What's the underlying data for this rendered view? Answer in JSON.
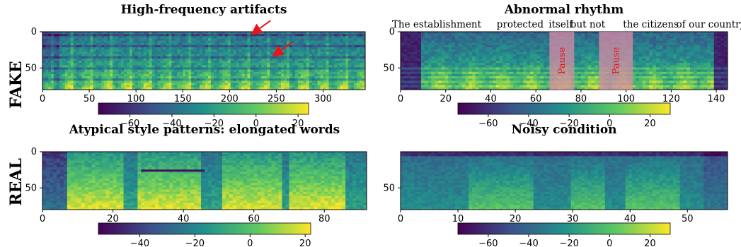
{
  "row_labels": [
    "FAKE",
    "REAL"
  ],
  "colormap": [
    "#440154",
    "#3b528b",
    "#21918c",
    "#5ec962",
    "#fde725"
  ],
  "annotation_color": "#e8151b",
  "pause_fill": "#d98ca6",
  "chart_data": [
    {
      "type": "heatmap",
      "title": "High-frequency artifacts",
      "x_ticks": [
        0,
        50,
        100,
        150,
        200,
        250,
        300
      ],
      "xlim": [
        0,
        345
      ],
      "y_ticks": [
        0,
        50
      ],
      "ylim": [
        80,
        0
      ],
      "colorbar": {
        "ticks": [
          -60,
          -40,
          -20,
          0,
          20
        ],
        "range": [
          -75,
          25
        ]
      },
      "annotations": [
        {
          "type": "arrow",
          "target_x": 225,
          "target_y": 2
        },
        {
          "type": "arrow",
          "target_x": 248,
          "target_y": 32
        }
      ]
    },
    {
      "type": "heatmap",
      "title": "Abnormal rhythm",
      "x_ticks": [
        0,
        20,
        40,
        60,
        80,
        100,
        120,
        140
      ],
      "xlim": [
        0,
        145
      ],
      "y_ticks": [
        0,
        50
      ],
      "ylim": [
        80,
        0
      ],
      "colorbar": {
        "ticks": [
          -60,
          -40,
          -20,
          0,
          20
        ],
        "range": [
          -75,
          30
        ]
      },
      "transcript": [
        {
          "text": "The establishment",
          "x": 16
        },
        {
          "text": "protected",
          "x": 53
        },
        {
          "text": "itself",
          "x": 71
        },
        {
          "text": "but not",
          "x": 83
        },
        {
          "text": "the citizens",
          "x": 111
        },
        {
          "text": "of our country.",
          "x": 138
        }
      ],
      "pauses": [
        {
          "label": "Pause",
          "x_start": 66,
          "x_end": 77
        },
        {
          "label": "Pause",
          "x_start": 88,
          "x_end": 103
        }
      ]
    },
    {
      "type": "heatmap",
      "title": "Atypical style patterns: elongated words",
      "x_ticks": [
        0,
        20,
        40,
        60,
        80
      ],
      "xlim": [
        0,
        92
      ],
      "y_ticks": [
        0,
        50
      ],
      "ylim": [
        80,
        0
      ],
      "colorbar": {
        "ticks": [
          -40,
          -20,
          0,
          20
        ],
        "range": [
          -55,
          22
        ]
      }
    },
    {
      "type": "heatmap",
      "title": "Noisy condition",
      "x_ticks": [
        0,
        10,
        20,
        30,
        40,
        50
      ],
      "xlim": [
        0,
        57
      ],
      "y_ticks": [
        50
      ],
      "ylim": [
        80,
        0
      ],
      "colorbar": {
        "ticks": [
          -60,
          -40,
          -20,
          0,
          20
        ],
        "range": [
          -75,
          30
        ]
      }
    }
  ]
}
